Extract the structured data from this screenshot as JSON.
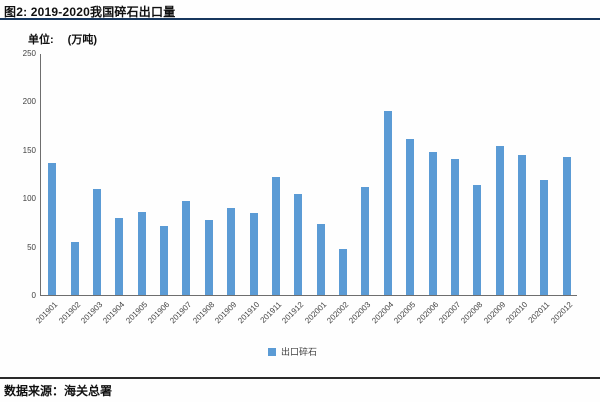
{
  "header": {
    "title": "图2:  2019-2020我国碎石出口量"
  },
  "unit": {
    "label": "单位:",
    "value": "(万吨)"
  },
  "chart_data": {
    "type": "bar",
    "title": "2019-2020我国碎石出口量",
    "xlabel": "",
    "ylabel": "万吨",
    "categories": [
      "201901",
      "201902",
      "201903",
      "201904",
      "201905",
      "201906",
      "201907",
      "201908",
      "201909",
      "201910",
      "201911",
      "201912",
      "202001",
      "202002",
      "202003",
      "202004",
      "202005",
      "202006",
      "202007",
      "202008",
      "202009",
      "202010",
      "202011",
      "202012"
    ],
    "series": [
      {
        "name": "出口碎石",
        "values": [
          136,
          55,
          110,
          80,
          86,
          71,
          97,
          78,
          90,
          85,
          122,
          104,
          73,
          48,
          112,
          190,
          161,
          148,
          141,
          114,
          154,
          145,
          119,
          143
        ]
      }
    ],
    "ylim": [
      0,
      250
    ],
    "y_ticks": [
      0,
      50,
      100,
      150,
      200,
      250
    ],
    "grid": false,
    "legend_position": "bottom",
    "bar_color": "#5B9BD5"
  },
  "legend": {
    "label": "出口碎石",
    "marker_color": "#5B9BD5"
  },
  "footer": {
    "source": "数据来源：海关总署"
  }
}
